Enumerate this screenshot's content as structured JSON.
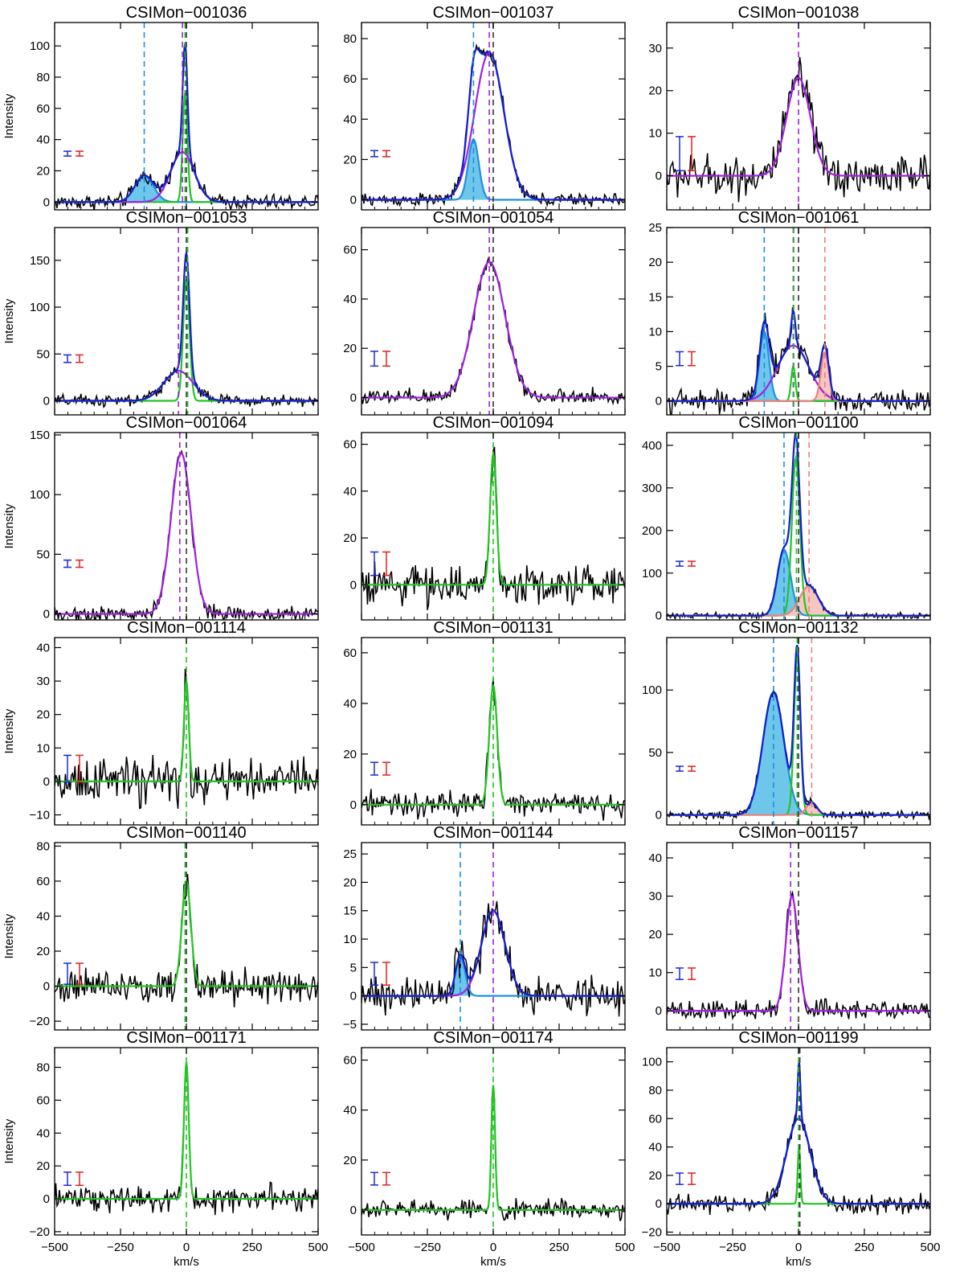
{
  "figure": {
    "ylabel": "Intensity",
    "xlabel": "km/s",
    "colors": {
      "data": "#000000",
      "total_fit": "#1020d0",
      "broad": "#a020e0",
      "narrow": "#22c422",
      "blue_comp_line": "#1f8fe0",
      "blue_comp_fill": "#6ec6ea",
      "red_comp_line": "#f08080",
      "red_comp_fill": "#f6c6c0",
      "zero_ref": "#333333",
      "err_blue": "#1a2ad0",
      "err_red": "#e02020"
    }
  },
  "chart_data": [
    {
      "type": "line",
      "title": "CSIMon−001036",
      "xlim": [
        -500,
        500
      ],
      "ylim": [
        -5,
        115
      ],
      "yticks": [
        0,
        20,
        40,
        60,
        80,
        100
      ],
      "xticks": [
        -500,
        -250,
        0,
        250,
        500
      ],
      "noise": 3,
      "err": 1.5,
      "components": [
        {
          "kind": "blue",
          "amp": 17,
          "center": -160,
          "sigma": 35
        },
        {
          "kind": "narrow",
          "amp": 70,
          "center": -5,
          "sigma": 9
        },
        {
          "kind": "broad",
          "amp": 32,
          "center": -15,
          "sigma": 45
        }
      ],
      "vlines": [
        {
          "kind": "blue",
          "x": -160
        },
        {
          "kind": "broad",
          "x": -15
        },
        {
          "kind": "zero",
          "x": 0
        },
        {
          "kind": "narrow",
          "x": -5
        }
      ],
      "show_total": true
    },
    {
      "type": "line",
      "title": "CSIMon−001037",
      "xlim": [
        -500,
        500
      ],
      "ylim": [
        -5,
        88
      ],
      "yticks": [
        0,
        20,
        40,
        60,
        80
      ],
      "xticks": [
        -500,
        -250,
        0,
        250,
        500
      ],
      "noise": 2,
      "err": 1.5,
      "components": [
        {
          "kind": "blue",
          "amp": 30,
          "center": -75,
          "sigma": 20
        },
        {
          "kind": "broad",
          "amp": 73,
          "center": -15,
          "sigma": 55
        }
      ],
      "vlines": [
        {
          "kind": "blue",
          "x": -75
        },
        {
          "kind": "broad",
          "x": -15
        },
        {
          "kind": "zero",
          "x": 0
        }
      ],
      "show_total": true
    },
    {
      "type": "line",
      "title": "CSIMon−001038",
      "xlim": [
        -500,
        500
      ],
      "ylim": [
        -8,
        36
      ],
      "yticks": [
        0,
        10,
        20,
        30
      ],
      "xticks": [
        -500,
        -250,
        0,
        250,
        500
      ],
      "noise": 3,
      "err": 4,
      "components": [
        {
          "kind": "broad",
          "amp": 23,
          "center": 0,
          "sigma": 45
        }
      ],
      "vlines": [
        {
          "kind": "broad",
          "x": 0
        }
      ],
      "show_total": false
    },
    {
      "type": "line",
      "title": "CSIMon−001053",
      "xlim": [
        -500,
        500
      ],
      "ylim": [
        -15,
        185
      ],
      "yticks": [
        0,
        50,
        100,
        150
      ],
      "xticks": [
        -500,
        -250,
        0,
        250,
        500
      ],
      "noise": 4,
      "err": 4,
      "components": [
        {
          "kind": "narrow",
          "amp": 130,
          "center": 0,
          "sigma": 12
        },
        {
          "kind": "broad",
          "amp": 32,
          "center": -30,
          "sigma": 55
        }
      ],
      "vlines": [
        {
          "kind": "broad",
          "x": -30
        },
        {
          "kind": "zero",
          "x": 0
        },
        {
          "kind": "narrow",
          "x": 5
        }
      ],
      "show_total": true
    },
    {
      "type": "line",
      "title": "CSIMon−001054",
      "xlim": [
        -500,
        500
      ],
      "ylim": [
        -7,
        69
      ],
      "yticks": [
        0,
        20,
        40,
        60
      ],
      "xticks": [
        -500,
        -250,
        0,
        250,
        500
      ],
      "noise": 2,
      "err": 3,
      "components": [
        {
          "kind": "broad",
          "amp": 55,
          "center": -15,
          "sigma": 60
        }
      ],
      "vlines": [
        {
          "kind": "broad",
          "x": -15
        },
        {
          "kind": "zero",
          "x": 0
        }
      ],
      "show_total": false
    },
    {
      "type": "line",
      "title": "CSIMon−001061",
      "xlim": [
        -500,
        500
      ],
      "ylim": [
        -2,
        25
      ],
      "yticks": [
        0,
        5,
        10,
        15,
        20,
        25
      ],
      "xticks": [
        -500,
        -250,
        0,
        250,
        500
      ],
      "noise": 1,
      "err": 1,
      "components": [
        {
          "kind": "blue",
          "amp": 10,
          "center": -130,
          "sigma": 18
        },
        {
          "kind": "narrow",
          "amp": 5,
          "center": -20,
          "sigma": 8
        },
        {
          "kind": "broad",
          "amp": 8,
          "center": -20,
          "sigma": 60
        },
        {
          "kind": "red",
          "amp": 7,
          "center": 100,
          "sigma": 15
        }
      ],
      "vlines": [
        {
          "kind": "blue",
          "x": -130
        },
        {
          "kind": "broad",
          "x": -20
        },
        {
          "kind": "narrow",
          "x": -18
        },
        {
          "kind": "zero",
          "x": 0
        },
        {
          "kind": "red",
          "x": 100
        }
      ],
      "show_total": true
    },
    {
      "type": "line",
      "title": "CSIMon−001064",
      "xlim": [
        -500,
        500
      ],
      "ylim": [
        -5,
        152
      ],
      "yticks": [
        0,
        50,
        100,
        150
      ],
      "xticks": [
        -500,
        -250,
        0,
        250,
        500
      ],
      "noise": 4,
      "err": 3,
      "components": [
        {
          "kind": "broad",
          "amp": 135,
          "center": -20,
          "sigma": 38
        }
      ],
      "vlines": [
        {
          "kind": "broad",
          "x": -25
        },
        {
          "kind": "zero",
          "x": 0
        }
      ],
      "show_total": false
    },
    {
      "type": "line",
      "title": "CSIMon−001094",
      "xlim": [
        -500,
        500
      ],
      "ylim": [
        -15,
        65
      ],
      "yticks": [
        0,
        20,
        40,
        60
      ],
      "xticks": [
        -500,
        -250,
        0,
        250,
        500
      ],
      "noise": 5,
      "err": 5,
      "components": [
        {
          "kind": "narrow",
          "amp": 56,
          "center": 0,
          "sigma": 12
        }
      ],
      "vlines": [
        {
          "kind": "narrow",
          "x": 0
        }
      ],
      "show_total": false
    },
    {
      "type": "line",
      "title": "CSIMon−001100",
      "xlim": [
        -500,
        500
      ],
      "ylim": [
        -10,
        430
      ],
      "yticks": [
        0,
        100,
        200,
        300,
        400
      ],
      "xticks": [
        -500,
        -250,
        0,
        250,
        500
      ],
      "noise": 4,
      "err": 3,
      "components": [
        {
          "kind": "blue",
          "amp": 155,
          "center": -55,
          "sigma": 25
        },
        {
          "kind": "narrow",
          "amp": 370,
          "center": -10,
          "sigma": 15
        },
        {
          "kind": "red",
          "amp": 70,
          "center": 40,
          "sigma": 35
        }
      ],
      "vlines": [
        {
          "kind": "blue",
          "x": -55
        },
        {
          "kind": "narrow",
          "x": -8
        },
        {
          "kind": "zero",
          "x": 0
        },
        {
          "kind": "red",
          "x": 40
        }
      ],
      "show_total": true
    },
    {
      "type": "line",
      "title": "CSIMon−001114",
      "xlim": [
        -500,
        500
      ],
      "ylim": [
        -13,
        43
      ],
      "yticks": [
        -10,
        0,
        10,
        20,
        30,
        40
      ],
      "xticks": [
        -500,
        -250,
        0,
        250,
        500
      ],
      "noise": 4,
      "err": 4,
      "components": [
        {
          "kind": "narrow",
          "amp": 30,
          "center": 0,
          "sigma": 9
        }
      ],
      "vlines": [
        {
          "kind": "narrow",
          "x": 0
        }
      ],
      "show_total": false
    },
    {
      "type": "line",
      "title": "CSIMon−001131",
      "xlim": [
        -500,
        500
      ],
      "ylim": [
        -8,
        66
      ],
      "yticks": [
        0,
        20,
        40,
        60
      ],
      "xticks": [
        -500,
        -250,
        0,
        250,
        500
      ],
      "noise": 3,
      "err": 2.5,
      "components": [
        {
          "kind": "narrow",
          "amp": 47,
          "center": 0,
          "sigma": 15
        }
      ],
      "vlines": [
        {
          "kind": "narrow",
          "x": 0
        }
      ],
      "show_total": false
    },
    {
      "type": "line",
      "title": "CSIMon−001132",
      "xlim": [
        -500,
        500
      ],
      "ylim": [
        -8,
        142
      ],
      "yticks": [
        0,
        50,
        100
      ],
      "xticks": [
        -500,
        -250,
        0,
        250,
        500
      ],
      "noise": 2,
      "err": 1.5,
      "components": [
        {
          "kind": "blue",
          "amp": 98,
          "center": -95,
          "sigma": 40
        },
        {
          "kind": "narrow",
          "amp": 128,
          "center": -5,
          "sigma": 12
        },
        {
          "kind": "red",
          "amp": 10,
          "center": 50,
          "sigma": 20
        }
      ],
      "vlines": [
        {
          "kind": "blue",
          "x": -95
        },
        {
          "kind": "narrow",
          "x": -5
        },
        {
          "kind": "zero",
          "x": 0
        },
        {
          "kind": "red",
          "x": 50
        }
      ],
      "show_total": true
    },
    {
      "type": "line",
      "title": "CSIMon−001140",
      "xlim": [
        -500,
        500
      ],
      "ylim": [
        -25,
        82
      ],
      "yticks": [
        -20,
        0,
        20,
        40,
        60,
        80
      ],
      "xticks": [
        -500,
        -250,
        0,
        250,
        500
      ],
      "noise": 6,
      "err": 6,
      "components": [
        {
          "kind": "narrow",
          "amp": 60,
          "center": 0,
          "sigma": 17
        }
      ],
      "vlines": [
        {
          "kind": "narrow",
          "x": -5
        },
        {
          "kind": "zero",
          "x": 0
        }
      ],
      "show_total": false
    },
    {
      "type": "line",
      "title": "CSIMon−001144",
      "xlim": [
        -500,
        500
      ],
      "ylim": [
        -6,
        27
      ],
      "yticks": [
        -5,
        0,
        5,
        10,
        15,
        20,
        25
      ],
      "xticks": [
        -500,
        -250,
        0,
        250,
        500
      ],
      "noise": 2,
      "err": 2,
      "components": [
        {
          "kind": "blue",
          "amp": 7,
          "center": -125,
          "sigma": 18
        },
        {
          "kind": "broad",
          "amp": 15,
          "center": 0,
          "sigma": 45
        }
      ],
      "vlines": [
        {
          "kind": "blue",
          "x": -125
        },
        {
          "kind": "broad",
          "x": 0
        }
      ],
      "show_total": true
    },
    {
      "type": "line",
      "title": "CSIMon−001157",
      "xlim": [
        -500,
        500
      ],
      "ylim": [
        -5,
        44
      ],
      "yticks": [
        0,
        10,
        20,
        30,
        40
      ],
      "xticks": [
        -500,
        -250,
        0,
        250,
        500
      ],
      "noise": 1.5,
      "err": 1.5,
      "components": [
        {
          "kind": "broad",
          "amp": 30,
          "center": -25,
          "sigma": 23
        }
      ],
      "vlines": [
        {
          "kind": "broad",
          "x": -30
        },
        {
          "kind": "zero",
          "x": 0
        }
      ],
      "show_total": false
    },
    {
      "type": "line",
      "title": "CSIMon−001171",
      "xlim": [
        -500,
        500
      ],
      "ylim": [
        -22,
        92
      ],
      "yticks": [
        -20,
        0,
        20,
        40,
        60,
        80
      ],
      "xticks": [
        -500,
        -250,
        0,
        250,
        500
      ],
      "noise": 5,
      "err": 4,
      "components": [
        {
          "kind": "narrow",
          "amp": 83,
          "center": 0,
          "sigma": 9
        }
      ],
      "vlines": [
        {
          "kind": "narrow",
          "x": 0
        }
      ],
      "show_total": false
    },
    {
      "type": "line",
      "title": "CSIMon−001174",
      "xlim": [
        -500,
        500
      ],
      "ylim": [
        -10,
        65
      ],
      "yticks": [
        0,
        20,
        40,
        60
      ],
      "xticks": [
        -500,
        -250,
        0,
        250,
        500
      ],
      "noise": 2.5,
      "err": 2.5,
      "components": [
        {
          "kind": "narrow",
          "amp": 50,
          "center": 0,
          "sigma": 7
        }
      ],
      "vlines": [
        {
          "kind": "narrow",
          "x": 0
        }
      ],
      "show_total": false
    },
    {
      "type": "line",
      "title": "CSIMon−001199",
      "xlim": [
        -500,
        500
      ],
      "ylim": [
        -22,
        110
      ],
      "yticks": [
        -20,
        0,
        20,
        40,
        60,
        80,
        100
      ],
      "xticks": [
        -500,
        -250,
        0,
        250,
        500
      ],
      "noise": 4,
      "err": 4,
      "components": [
        {
          "kind": "narrow",
          "amp": 40,
          "center": 2,
          "sigma": 5
        },
        {
          "kind": "blue_wide",
          "amp": 60,
          "center": 0,
          "sigma": 45
        }
      ],
      "vlines": [
        {
          "kind": "narrow",
          "x": 0
        },
        {
          "kind": "zero",
          "x": 5
        }
      ],
      "show_total": true
    }
  ]
}
